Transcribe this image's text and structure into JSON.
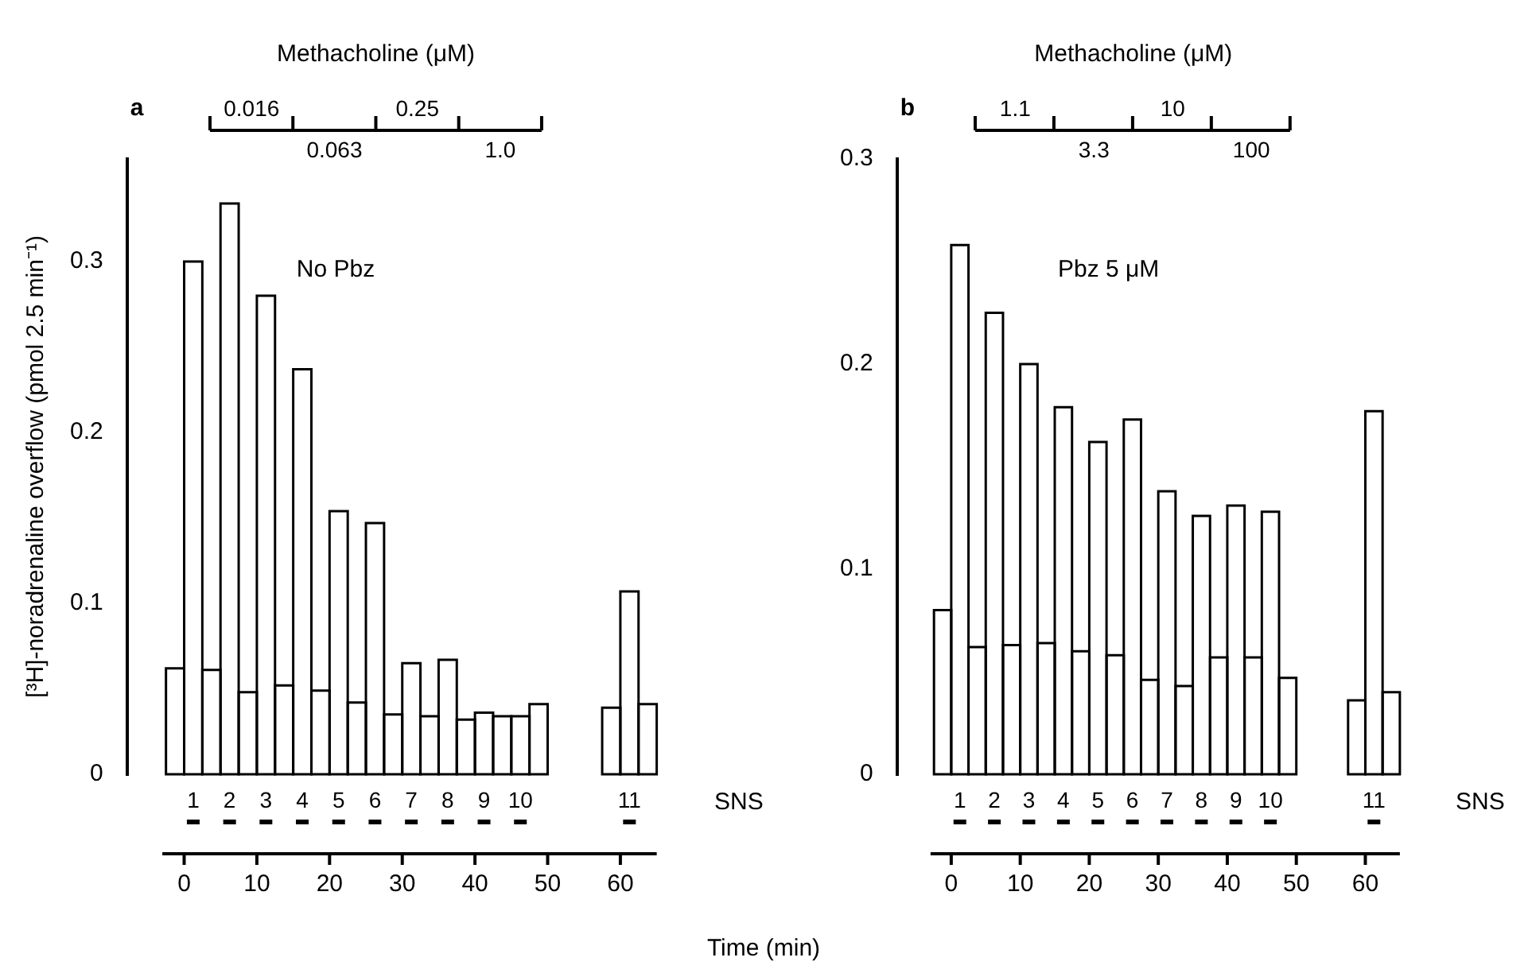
{
  "chart_data": [
    {
      "type": "histogram",
      "title": "a",
      "ylabel": "[³H]-noradrenaline overflow (pmol 2.5 min⁻¹)",
      "color": "#ffffff",
      "bins": [
        -2.5,
        0,
        2.5,
        5,
        7.5,
        10,
        12.5,
        15,
        17.5,
        20,
        22.5,
        25,
        27.5,
        30,
        32.5,
        35,
        37.5,
        40,
        42.5,
        45,
        47.5,
        50,
        52.5,
        55,
        57.5,
        60,
        62.5,
        65
      ],
      "values": [
        0.062,
        0.3,
        0.061,
        0.334,
        0.048,
        0.28,
        0.052,
        0.237,
        0.049,
        0.154,
        0.042,
        0.147,
        0.035,
        0.065,
        0.034,
        0.067,
        0.032,
        0.036,
        0.034,
        0.034,
        0.041,
        null,
        null,
        null,
        0.039,
        0.107,
        0.041
      ],
      "xlim": [
        -3,
        65
      ],
      "xticks": [
        0,
        10,
        20,
        30,
        40,
        50,
        60
      ],
      "ylim": [
        0,
        0.36
      ],
      "yticks": [
        0,
        0.1,
        0.2,
        0.3
      ],
      "annotations": [
        "No Pbz",
        "0.016",
        "0.063",
        "0.25",
        "1.0",
        {
          "text": "1",
          "x": 1.25,
          "y": 0
        },
        {
          "text": "2",
          "x": 6.25,
          "y": 0
        },
        {
          "text": "3",
          "x": 11.25,
          "y": 0
        },
        {
          "text": "4",
          "x": 16.25,
          "y": 0
        },
        {
          "text": "5",
          "x": 21.25,
          "y": 0
        },
        {
          "text": "6",
          "x": 26.25,
          "y": 0
        },
        {
          "text": "7",
          "x": 31.25,
          "y": 0
        },
        {
          "text": "8",
          "x": 36.25,
          "y": 0
        },
        {
          "text": "9",
          "x": 41.25,
          "y": 0
        },
        {
          "text": "10",
          "x": 46.25,
          "y": 0
        },
        {
          "text": "11",
          "x": 61.25,
          "y": 0
        },
        "SNS",
        "Methacholine (μM)"
      ]
    },
    {
      "type": "histogram",
      "title": "b",
      "xlabel": "Time (min)",
      "color": "#ffffff",
      "bins": [
        -2.5,
        0,
        2.5,
        5,
        7.5,
        10,
        12.5,
        15,
        17.5,
        20,
        22.5,
        25,
        27.5,
        30,
        32.5,
        35,
        37.5,
        40,
        42.5,
        45,
        47.5,
        50,
        52.5,
        55,
        57.5,
        60,
        62.5,
        65
      ],
      "values": [
        0.08,
        0.258,
        0.062,
        0.225,
        0.063,
        0.2,
        0.064,
        0.179,
        0.06,
        0.162,
        0.058,
        0.173,
        0.046,
        0.138,
        0.043,
        0.126,
        0.057,
        0.131,
        0.057,
        0.128,
        0.047,
        null,
        null,
        null,
        0.036,
        0.177,
        0.04
      ],
      "xlim": [
        -3,
        65
      ],
      "xticks": [
        0,
        10,
        20,
        30,
        40,
        50,
        60
      ],
      "ylim": [
        0,
        0.3
      ],
      "yticks": [
        0,
        0.1,
        0.2,
        0.3
      ],
      "annotations": [
        "Pbz 5 μM",
        "1.1",
        "3.3",
        "10",
        "100",
        {
          "text": "1",
          "x": 1.25,
          "y": 0
        },
        {
          "text": "2",
          "x": 6.25,
          "y": 0
        },
        {
          "text": "3",
          "x": 11.25,
          "y": 0
        },
        {
          "text": "4",
          "x": 16.25,
          "y": 0
        },
        {
          "text": "5",
          "x": 21.25,
          "y": 0
        },
        {
          "text": "6",
          "x": 26.25,
          "y": 0
        },
        {
          "text": "7",
          "x": 31.25,
          "y": 0
        },
        {
          "text": "8",
          "x": 36.25,
          "y": 0
        },
        {
          "text": "9",
          "x": 41.25,
          "y": 0
        },
        {
          "text": "10",
          "x": 46.25,
          "y": 0
        },
        {
          "text": "11",
          "x": 61.25,
          "y": 0
        },
        "SNS",
        "Methacholine (μM)"
      ]
    }
  ]
}
